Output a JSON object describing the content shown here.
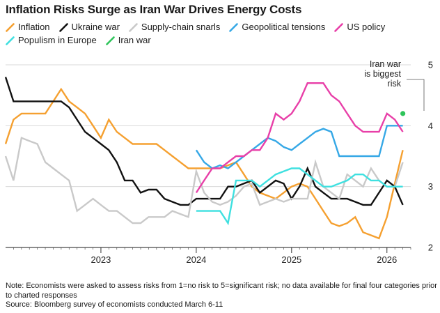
{
  "chart_data": {
    "type": "line",
    "title": "Inflation Risks Surge as Iran War Drives Energy Costs",
    "xlabel": "",
    "ylabel": "",
    "x_ticks": [
      "2023",
      "2024",
      "2025",
      "2026"
    ],
    "y_ticks": [
      "2",
      "3",
      "4",
      "5"
    ],
    "ylim": [
      2,
      5
    ],
    "xlim": [
      2022.0,
      2026.25
    ],
    "grid": true,
    "series": [
      {
        "name": "Inflation",
        "color": "#f5a030",
        "x": [
          2022.0,
          2022.083,
          2022.167,
          2022.25,
          2022.333,
          2022.417,
          2022.5,
          2022.583,
          2022.667,
          2022.75,
          2022.833,
          2022.917,
          2023.0,
          2023.083,
          2023.167,
          2023.25,
          2023.333,
          2023.417,
          2023.5,
          2023.583,
          2023.667,
          2023.75,
          2023.833,
          2023.917,
          2024.0,
          2024.083,
          2024.167,
          2024.25,
          2024.333,
          2024.417,
          2024.5,
          2024.583,
          2024.667,
          2024.75,
          2024.833,
          2024.917,
          2025.0,
          2025.083,
          2025.167,
          2025.25,
          2025.333,
          2025.417,
          2025.5,
          2025.583,
          2025.667,
          2025.75,
          2025.833,
          2025.917,
          2026.0,
          2026.083,
          2026.167
        ],
        "values": [
          3.7,
          4.1,
          4.2,
          4.2,
          4.2,
          4.2,
          4.4,
          4.6,
          4.4,
          4.3,
          4.2,
          4.0,
          3.8,
          4.1,
          3.9,
          3.8,
          3.7,
          3.7,
          3.7,
          3.7,
          3.6,
          3.5,
          3.4,
          3.3,
          3.3,
          3.3,
          3.3,
          3.3,
          3.35,
          3.4,
          3.2,
          3.0,
          2.9,
          2.85,
          2.8,
          2.9,
          3.0,
          3.05,
          3.0,
          2.8,
          2.6,
          2.4,
          2.35,
          2.4,
          2.5,
          2.25,
          2.2,
          2.15,
          2.5,
          3.05,
          3.6
        ]
      },
      {
        "name": "Ukraine war",
        "color": "#111111",
        "x": [
          2022.0,
          2022.083,
          2022.167,
          2022.25,
          2022.333,
          2022.417,
          2022.5,
          2022.583,
          2022.667,
          2022.75,
          2022.833,
          2022.917,
          2023.0,
          2023.083,
          2023.167,
          2023.25,
          2023.333,
          2023.417,
          2023.5,
          2023.583,
          2023.667,
          2023.75,
          2023.833,
          2023.917,
          2024.0,
          2024.083,
          2024.167,
          2024.25,
          2024.333,
          2024.417,
          2024.5,
          2024.583,
          2024.667,
          2024.75,
          2024.833,
          2024.917,
          2025.0,
          2025.083,
          2025.167,
          2025.25,
          2025.333,
          2025.417,
          2025.5,
          2025.583,
          2025.667,
          2025.75,
          2025.833,
          2025.917,
          2026.0,
          2026.083,
          2026.167
        ],
        "values": [
          4.8,
          4.4,
          4.4,
          4.4,
          4.4,
          4.4,
          4.4,
          4.4,
          4.3,
          4.1,
          3.9,
          3.8,
          3.7,
          3.6,
          3.4,
          3.1,
          3.1,
          2.9,
          2.95,
          2.95,
          2.8,
          2.75,
          2.7,
          2.7,
          2.8,
          2.8,
          2.8,
          2.8,
          3.0,
          3.0,
          3.05,
          3.1,
          2.9,
          3.0,
          3.1,
          3.05,
          2.8,
          3.0,
          3.3,
          3.0,
          2.9,
          2.8,
          2.8,
          2.8,
          2.75,
          2.7,
          2.7,
          2.9,
          3.1,
          3.0,
          2.7
        ]
      },
      {
        "name": "Supply-chain snarls",
        "color": "#c9c9c9",
        "x": [
          2022.0,
          2022.083,
          2022.167,
          2022.25,
          2022.333,
          2022.417,
          2022.5,
          2022.583,
          2022.667,
          2022.75,
          2022.833,
          2022.917,
          2023.0,
          2023.083,
          2023.167,
          2023.25,
          2023.333,
          2023.417,
          2023.5,
          2023.583,
          2023.667,
          2023.75,
          2023.833,
          2023.917,
          2024.0,
          2024.083,
          2024.167,
          2024.25,
          2024.333,
          2024.417,
          2024.5,
          2024.583,
          2024.667,
          2024.75,
          2024.833,
          2024.917,
          2025.0,
          2025.083,
          2025.167,
          2025.25,
          2025.333,
          2025.417,
          2025.5,
          2025.583,
          2025.667,
          2025.75,
          2025.833,
          2025.917,
          2026.0,
          2026.083,
          2026.167
        ],
        "values": [
          3.5,
          3.1,
          3.8,
          3.75,
          3.7,
          3.4,
          3.3,
          3.2,
          3.1,
          2.6,
          2.7,
          2.8,
          2.7,
          2.6,
          2.6,
          2.5,
          2.4,
          2.4,
          2.5,
          2.5,
          2.5,
          2.6,
          2.55,
          2.5,
          3.25,
          2.9,
          2.75,
          2.7,
          2.75,
          2.85,
          3.0,
          3.05,
          2.7,
          2.75,
          2.8,
          2.75,
          2.8,
          2.8,
          2.8,
          3.4,
          3.0,
          2.9,
          2.8,
          3.2,
          3.1,
          3.0,
          3.3,
          3.1,
          3.0,
          3.0,
          3.4
        ]
      },
      {
        "name": "Geopolitical tensions",
        "color": "#36a8e6",
        "x": [
          2024.0,
          2024.083,
          2024.167,
          2024.25,
          2024.333,
          2024.417,
          2024.5,
          2024.583,
          2024.667,
          2024.75,
          2024.833,
          2024.917,
          2025.0,
          2025.083,
          2025.167,
          2025.25,
          2025.333,
          2025.417,
          2025.5,
          2025.583,
          2025.667,
          2025.75,
          2025.833,
          2025.917,
          2026.0,
          2026.083,
          2026.167
        ],
        "values": [
          3.6,
          3.4,
          3.3,
          3.35,
          3.3,
          3.4,
          3.5,
          3.6,
          3.7,
          3.8,
          3.75,
          3.65,
          3.6,
          3.7,
          3.8,
          3.9,
          3.95,
          3.9,
          3.5,
          3.5,
          3.5,
          3.5,
          3.5,
          3.5,
          4.0,
          4.0,
          4.0
        ]
      },
      {
        "name": "US policy",
        "color": "#e83fa8",
        "x": [
          2024.0,
          2024.083,
          2024.167,
          2024.25,
          2024.333,
          2024.417,
          2024.5,
          2024.583,
          2024.667,
          2024.75,
          2024.833,
          2024.917,
          2025.0,
          2025.083,
          2025.167,
          2025.25,
          2025.333,
          2025.417,
          2025.5,
          2025.583,
          2025.667,
          2025.75,
          2025.833,
          2025.917,
          2026.0,
          2026.083,
          2026.167
        ],
        "values": [
          2.9,
          3.1,
          3.3,
          3.3,
          3.4,
          3.5,
          3.5,
          3.6,
          3.6,
          3.8,
          4.2,
          4.1,
          4.2,
          4.4,
          4.7,
          4.7,
          4.7,
          4.5,
          4.4,
          4.2,
          4.0,
          3.9,
          3.9,
          3.9,
          4.2,
          4.1,
          3.9
        ]
      },
      {
        "name": "Populism in Europe",
        "color": "#3fe0e0",
        "x": [
          2024.0,
          2024.083,
          2024.167,
          2024.25,
          2024.333,
          2024.417,
          2024.5,
          2024.583,
          2024.667,
          2024.75,
          2024.833,
          2024.917,
          2025.0,
          2025.083,
          2025.167,
          2025.25,
          2025.333,
          2025.417,
          2025.5,
          2025.583,
          2025.667,
          2025.75,
          2025.833,
          2025.917,
          2026.0,
          2026.083,
          2026.167
        ],
        "values": [
          2.6,
          2.6,
          2.6,
          2.6,
          2.4,
          3.1,
          3.1,
          3.1,
          3.0,
          3.1,
          3.2,
          3.25,
          3.3,
          3.3,
          3.2,
          3.1,
          3.0,
          3.0,
          3.05,
          3.1,
          3.2,
          3.2,
          3.1,
          3.1,
          3.0,
          3.0,
          3.0
        ]
      },
      {
        "name": "Iran war",
        "color": "#2ec45a",
        "x": [
          2026.167
        ],
        "values": [
          4.2
        ]
      }
    ],
    "annotations": [
      {
        "lines": [
          "Iran war",
          "is biggest",
          "risk"
        ]
      }
    ]
  },
  "note": {
    "text": "Note: Economists were asked to assess risks from 1=no risk to 5=significant risk; no data available for final four categories prior to charted responses",
    "source": "Source: Bloomberg survey of economists conducted March 6-11"
  }
}
